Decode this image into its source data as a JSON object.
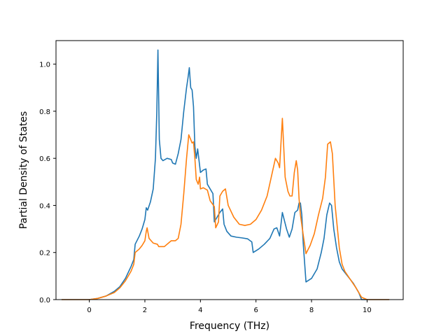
{
  "chart_data": {
    "type": "line",
    "title": "",
    "xlabel": "Frequency (THz)",
    "ylabel": "Partial Density of States",
    "xlim": [
      -1.2,
      11.3
    ],
    "ylim": [
      0.0,
      1.1
    ],
    "xticks": [
      {
        "value": 0,
        "label": "0"
      },
      {
        "value": 2,
        "label": "2"
      },
      {
        "value": 4,
        "label": "4"
      },
      {
        "value": 6,
        "label": "6"
      },
      {
        "value": 8,
        "label": "8"
      },
      {
        "value": 10,
        "label": "10"
      }
    ],
    "yticks": [
      {
        "value": 0.0,
        "label": "0.0"
      },
      {
        "value": 0.2,
        "label": "0.2"
      },
      {
        "value": 0.4,
        "label": "0.4"
      },
      {
        "value": 0.6,
        "label": "0.6"
      },
      {
        "value": 0.8,
        "label": "0.8"
      },
      {
        "value": 1.0,
        "label": "1.0"
      }
    ],
    "grid": false,
    "legend": "none",
    "series": [
      {
        "color": "#1f77b4",
        "points": [
          [
            -1.0,
            0.0
          ],
          [
            0.0,
            0.0
          ],
          [
            0.3,
            0.005
          ],
          [
            0.6,
            0.015
          ],
          [
            0.9,
            0.035
          ],
          [
            1.1,
            0.055
          ],
          [
            1.3,
            0.09
          ],
          [
            1.5,
            0.14
          ],
          [
            1.6,
            0.17
          ],
          [
            1.65,
            0.235
          ],
          [
            1.8,
            0.27
          ],
          [
            1.9,
            0.3
          ],
          [
            2.0,
            0.34
          ],
          [
            2.05,
            0.39
          ],
          [
            2.1,
            0.38
          ],
          [
            2.2,
            0.415
          ],
          [
            2.3,
            0.47
          ],
          [
            2.38,
            0.6
          ],
          [
            2.43,
            0.8
          ],
          [
            2.47,
            1.06
          ],
          [
            2.52,
            0.68
          ],
          [
            2.58,
            0.6
          ],
          [
            2.65,
            0.59
          ],
          [
            2.8,
            0.6
          ],
          [
            2.95,
            0.595
          ],
          [
            3.0,
            0.58
          ],
          [
            3.1,
            0.575
          ],
          [
            3.2,
            0.62
          ],
          [
            3.3,
            0.68
          ],
          [
            3.4,
            0.8
          ],
          [
            3.5,
            0.9
          ],
          [
            3.55,
            0.94
          ],
          [
            3.6,
            0.985
          ],
          [
            3.65,
            0.9
          ],
          [
            3.7,
            0.89
          ],
          [
            3.75,
            0.82
          ],
          [
            3.8,
            0.65
          ],
          [
            3.85,
            0.6
          ],
          [
            3.9,
            0.64
          ],
          [
            4.0,
            0.54
          ],
          [
            4.1,
            0.55
          ],
          [
            4.2,
            0.555
          ],
          [
            4.25,
            0.49
          ],
          [
            4.35,
            0.47
          ],
          [
            4.45,
            0.45
          ],
          [
            4.5,
            0.33
          ],
          [
            4.6,
            0.35
          ],
          [
            4.7,
            0.37
          ],
          [
            4.8,
            0.385
          ],
          [
            4.85,
            0.32
          ],
          [
            4.95,
            0.29
          ],
          [
            5.1,
            0.27
          ],
          [
            5.3,
            0.265
          ],
          [
            5.5,
            0.262
          ],
          [
            5.7,
            0.258
          ],
          [
            5.85,
            0.245
          ],
          [
            5.9,
            0.2
          ],
          [
            6.1,
            0.215
          ],
          [
            6.3,
            0.235
          ],
          [
            6.5,
            0.26
          ],
          [
            6.65,
            0.3
          ],
          [
            6.75,
            0.305
          ],
          [
            6.85,
            0.27
          ],
          [
            6.95,
            0.37
          ],
          [
            7.1,
            0.3
          ],
          [
            7.2,
            0.265
          ],
          [
            7.3,
            0.3
          ],
          [
            7.4,
            0.37
          ],
          [
            7.5,
            0.38
          ],
          [
            7.55,
            0.41
          ],
          [
            7.6,
            0.41
          ],
          [
            7.65,
            0.36
          ],
          [
            7.7,
            0.24
          ],
          [
            7.8,
            0.075
          ],
          [
            8.0,
            0.09
          ],
          [
            8.2,
            0.13
          ],
          [
            8.35,
            0.2
          ],
          [
            8.45,
            0.26
          ],
          [
            8.55,
            0.36
          ],
          [
            8.65,
            0.41
          ],
          [
            8.72,
            0.4
          ],
          [
            8.8,
            0.3
          ],
          [
            8.9,
            0.22
          ],
          [
            9.0,
            0.16
          ],
          [
            9.1,
            0.13
          ],
          [
            9.3,
            0.1
          ],
          [
            9.5,
            0.07
          ],
          [
            9.7,
            0.03
          ],
          [
            9.8,
            0.0
          ],
          [
            10.8,
            0.0
          ]
        ]
      },
      {
        "color": "#ff7f0e",
        "points": [
          [
            -1.0,
            0.0
          ],
          [
            0.0,
            0.0
          ],
          [
            0.3,
            0.005
          ],
          [
            0.6,
            0.015
          ],
          [
            0.9,
            0.03
          ],
          [
            1.1,
            0.05
          ],
          [
            1.3,
            0.08
          ],
          [
            1.5,
            0.12
          ],
          [
            1.6,
            0.15
          ],
          [
            1.65,
            0.2
          ],
          [
            1.8,
            0.215
          ],
          [
            1.9,
            0.23
          ],
          [
            2.0,
            0.25
          ],
          [
            2.05,
            0.29
          ],
          [
            2.08,
            0.305
          ],
          [
            2.15,
            0.26
          ],
          [
            2.3,
            0.24
          ],
          [
            2.45,
            0.235
          ],
          [
            2.5,
            0.225
          ],
          [
            2.7,
            0.225
          ],
          [
            2.85,
            0.24
          ],
          [
            2.95,
            0.25
          ],
          [
            3.1,
            0.25
          ],
          [
            3.2,
            0.26
          ],
          [
            3.3,
            0.32
          ],
          [
            3.4,
            0.45
          ],
          [
            3.5,
            0.6
          ],
          [
            3.58,
            0.7
          ],
          [
            3.65,
            0.68
          ],
          [
            3.7,
            0.665
          ],
          [
            3.75,
            0.67
          ],
          [
            3.8,
            0.6
          ],
          [
            3.85,
            0.51
          ],
          [
            3.92,
            0.49
          ],
          [
            3.97,
            0.52
          ],
          [
            4.0,
            0.47
          ],
          [
            4.1,
            0.475
          ],
          [
            4.25,
            0.465
          ],
          [
            4.35,
            0.42
          ],
          [
            4.5,
            0.395
          ],
          [
            4.55,
            0.305
          ],
          [
            4.65,
            0.33
          ],
          [
            4.7,
            0.44
          ],
          [
            4.8,
            0.46
          ],
          [
            4.9,
            0.47
          ],
          [
            5.0,
            0.4
          ],
          [
            5.2,
            0.35
          ],
          [
            5.4,
            0.32
          ],
          [
            5.6,
            0.315
          ],
          [
            5.8,
            0.32
          ],
          [
            6.0,
            0.34
          ],
          [
            6.2,
            0.38
          ],
          [
            6.4,
            0.44
          ],
          [
            6.55,
            0.52
          ],
          [
            6.7,
            0.6
          ],
          [
            6.8,
            0.58
          ],
          [
            6.85,
            0.56
          ],
          [
            6.95,
            0.77
          ],
          [
            7.05,
            0.52
          ],
          [
            7.15,
            0.46
          ],
          [
            7.22,
            0.44
          ],
          [
            7.3,
            0.44
          ],
          [
            7.38,
            0.54
          ],
          [
            7.45,
            0.59
          ],
          [
            7.5,
            0.55
          ],
          [
            7.55,
            0.43
          ],
          [
            7.6,
            0.36
          ],
          [
            7.7,
            0.275
          ],
          [
            7.8,
            0.195
          ],
          [
            7.95,
            0.23
          ],
          [
            8.1,
            0.28
          ],
          [
            8.25,
            0.36
          ],
          [
            8.4,
            0.43
          ],
          [
            8.5,
            0.52
          ],
          [
            8.58,
            0.66
          ],
          [
            8.68,
            0.67
          ],
          [
            8.75,
            0.62
          ],
          [
            8.85,
            0.4
          ],
          [
            9.0,
            0.22
          ],
          [
            9.1,
            0.15
          ],
          [
            9.2,
            0.12
          ],
          [
            9.4,
            0.085
          ],
          [
            9.6,
            0.05
          ],
          [
            9.8,
            0.01
          ],
          [
            10.0,
            0.0
          ],
          [
            10.8,
            0.0
          ]
        ]
      }
    ]
  }
}
